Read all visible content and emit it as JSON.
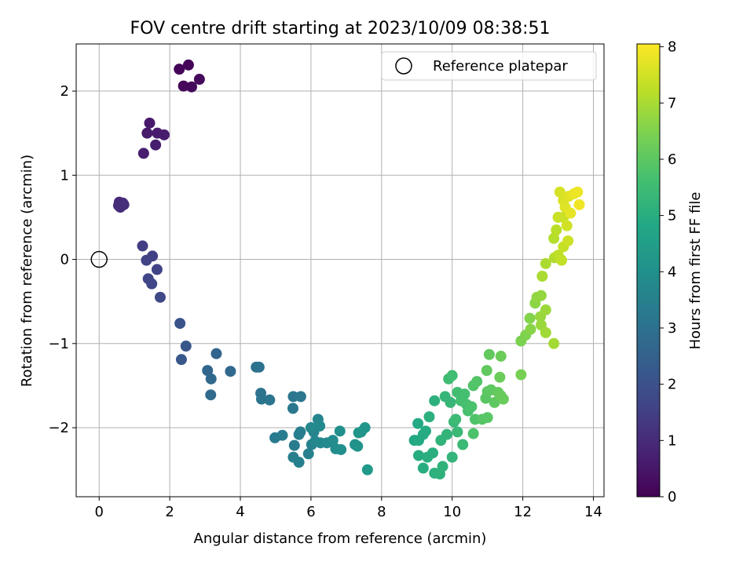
{
  "chart_data": {
    "type": "scatter",
    "title": "FOV centre drift starting at 2023/10/09 08:38:51",
    "xlabel": "Angular distance from reference (arcmin)",
    "ylabel": "Rotation from reference (arcmin)",
    "xlim": [
      -0.65,
      14.3
    ],
    "ylim": [
      -2.82,
      2.56
    ],
    "xticks": [
      0,
      2,
      4,
      6,
      8,
      10,
      12,
      14
    ],
    "yticks": [
      -2,
      -1,
      0,
      1,
      2
    ],
    "grid": true,
    "legend": {
      "position": "top-right",
      "entries": [
        {
          "label": "Reference platepar",
          "marker": "open-circle"
        }
      ]
    },
    "reference_point": {
      "x": 0,
      "y": 0
    },
    "colormap": "viridis",
    "colorbar": {
      "label": "Hours from first FF file",
      "range": [
        0,
        8.05
      ],
      "ticks": [
        0,
        1,
        2,
        3,
        4,
        5,
        6,
        7,
        8
      ]
    },
    "points": [
      {
        "x": 2.27,
        "y": 2.26,
        "c": 0.1
      },
      {
        "x": 2.53,
        "y": 2.31,
        "c": 0.12
      },
      {
        "x": 2.39,
        "y": 2.06,
        "c": 0.15
      },
      {
        "x": 2.62,
        "y": 2.05,
        "c": 0.18
      },
      {
        "x": 2.84,
        "y": 2.14,
        "c": 0.2
      },
      {
        "x": 1.43,
        "y": 1.62,
        "c": 0.55
      },
      {
        "x": 1.36,
        "y": 1.5,
        "c": 0.58
      },
      {
        "x": 1.65,
        "y": 1.5,
        "c": 0.6
      },
      {
        "x": 1.84,
        "y": 1.48,
        "c": 0.62
      },
      {
        "x": 1.6,
        "y": 1.36,
        "c": 0.64
      },
      {
        "x": 1.26,
        "y": 1.26,
        "c": 0.66
      },
      {
        "x": 0.57,
        "y": 0.68,
        "c": 0.95
      },
      {
        "x": 0.67,
        "y": 0.67,
        "c": 0.97
      },
      {
        "x": 0.55,
        "y": 0.64,
        "c": 1.0
      },
      {
        "x": 0.6,
        "y": 0.62,
        "c": 1.02
      },
      {
        "x": 0.7,
        "y": 0.65,
        "c": 1.05
      },
      {
        "x": 1.23,
        "y": 0.16,
        "c": 1.45
      },
      {
        "x": 1.51,
        "y": 0.04,
        "c": 1.5
      },
      {
        "x": 1.34,
        "y": -0.01,
        "c": 1.55
      },
      {
        "x": 1.64,
        "y": -0.12,
        "c": 1.6
      },
      {
        "x": 1.39,
        "y": -0.23,
        "c": 1.65
      },
      {
        "x": 1.49,
        "y": -0.29,
        "c": 1.7
      },
      {
        "x": 1.73,
        "y": -0.45,
        "c": 1.75
      },
      {
        "x": 2.29,
        "y": -0.76,
        "c": 2.05
      },
      {
        "x": 2.46,
        "y": -1.03,
        "c": 2.15
      },
      {
        "x": 2.33,
        "y": -1.19,
        "c": 2.2
      },
      {
        "x": 3.32,
        "y": -1.12,
        "c": 2.6
      },
      {
        "x": 3.07,
        "y": -1.32,
        "c": 2.65
      },
      {
        "x": 3.72,
        "y": -1.33,
        "c": 2.7
      },
      {
        "x": 3.17,
        "y": -1.42,
        "c": 2.75
      },
      {
        "x": 3.16,
        "y": -1.61,
        "c": 2.8
      },
      {
        "x": 4.45,
        "y": -1.28,
        "c": 3.0
      },
      {
        "x": 4.53,
        "y": -1.28,
        "c": 3.03
      },
      {
        "x": 4.58,
        "y": -1.59,
        "c": 3.06
      },
      {
        "x": 4.6,
        "y": -1.66,
        "c": 3.1
      },
      {
        "x": 4.83,
        "y": -1.67,
        "c": 3.12
      },
      {
        "x": 5.5,
        "y": -1.63,
        "c": 3.15
      },
      {
        "x": 5.71,
        "y": -1.63,
        "c": 3.18
      },
      {
        "x": 5.49,
        "y": -1.77,
        "c": 3.2
      },
      {
        "x": 4.98,
        "y": -2.12,
        "c": 3.3
      },
      {
        "x": 5.19,
        "y": -2.09,
        "c": 3.33
      },
      {
        "x": 5.53,
        "y": -2.21,
        "c": 3.36
      },
      {
        "x": 5.66,
        "y": -2.08,
        "c": 3.4
      },
      {
        "x": 5.7,
        "y": -2.05,
        "c": 3.42
      },
      {
        "x": 5.5,
        "y": -2.35,
        "c": 3.45
      },
      {
        "x": 5.66,
        "y": -2.41,
        "c": 3.48
      },
      {
        "x": 5.93,
        "y": -2.31,
        "c": 3.5
      },
      {
        "x": 6.02,
        "y": -2.2,
        "c": 3.55
      },
      {
        "x": 6.08,
        "y": -2.05,
        "c": 3.6
      },
      {
        "x": 6.2,
        "y": -1.9,
        "c": 3.65
      },
      {
        "x": 6.12,
        "y": -2.16,
        "c": 3.7
      },
      {
        "x": 6.27,
        "y": -2.18,
        "c": 3.72
      },
      {
        "x": 6.0,
        "y": -2.0,
        "c": 3.75
      },
      {
        "x": 6.25,
        "y": -1.98,
        "c": 3.78
      },
      {
        "x": 6.45,
        "y": -2.18,
        "c": 3.8
      },
      {
        "x": 6.62,
        "y": -2.15,
        "c": 3.85
      },
      {
        "x": 6.7,
        "y": -2.25,
        "c": 3.9
      },
      {
        "x": 6.85,
        "y": -2.26,
        "c": 3.95
      },
      {
        "x": 6.82,
        "y": -2.04,
        "c": 4.0
      },
      {
        "x": 7.25,
        "y": -2.2,
        "c": 4.05
      },
      {
        "x": 7.32,
        "y": -2.22,
        "c": 4.1
      },
      {
        "x": 7.35,
        "y": -2.06,
        "c": 4.15
      },
      {
        "x": 7.42,
        "y": -2.05,
        "c": 4.18
      },
      {
        "x": 7.53,
        "y": -2.0,
        "c": 4.22
      },
      {
        "x": 7.6,
        "y": -2.5,
        "c": 4.3
      },
      {
        "x": 8.93,
        "y": -2.15,
        "c": 4.8
      },
      {
        "x": 9.03,
        "y": -1.95,
        "c": 4.85
      },
      {
        "x": 9.05,
        "y": -2.15,
        "c": 4.88
      },
      {
        "x": 9.18,
        "y": -2.08,
        "c": 4.9
      },
      {
        "x": 9.25,
        "y": -2.04,
        "c": 4.93
      },
      {
        "x": 9.05,
        "y": -2.33,
        "c": 4.96
      },
      {
        "x": 9.18,
        "y": -2.48,
        "c": 5.0
      },
      {
        "x": 9.3,
        "y": -2.35,
        "c": 5.02
      },
      {
        "x": 9.45,
        "y": -2.3,
        "c": 5.05
      },
      {
        "x": 9.35,
        "y": -1.87,
        "c": 5.08
      },
      {
        "x": 9.5,
        "y": -1.68,
        "c": 5.1
      },
      {
        "x": 9.5,
        "y": -2.54,
        "c": 5.12
      },
      {
        "x": 9.65,
        "y": -2.55,
        "c": 5.15
      },
      {
        "x": 9.73,
        "y": -2.46,
        "c": 5.18
      },
      {
        "x": 9.68,
        "y": -2.15,
        "c": 5.2
      },
      {
        "x": 9.85,
        "y": -2.08,
        "c": 5.23
      },
      {
        "x": 10.0,
        "y": -2.35,
        "c": 5.26
      },
      {
        "x": 9.8,
        "y": -1.63,
        "c": 5.3
      },
      {
        "x": 9.95,
        "y": -1.7,
        "c": 5.33
      },
      {
        "x": 10.05,
        "y": -1.93,
        "c": 5.36
      },
      {
        "x": 10.15,
        "y": -2.05,
        "c": 5.4
      },
      {
        "x": 10.3,
        "y": -2.2,
        "c": 5.43
      },
      {
        "x": 10.1,
        "y": -1.9,
        "c": 5.46
      },
      {
        "x": 9.9,
        "y": -1.42,
        "c": 5.5
      },
      {
        "x": 10.0,
        "y": -1.38,
        "c": 5.53
      },
      {
        "x": 10.15,
        "y": -1.58,
        "c": 5.56
      },
      {
        "x": 10.25,
        "y": -1.68,
        "c": 5.6
      },
      {
        "x": 10.35,
        "y": -1.6,
        "c": 5.63
      },
      {
        "x": 10.4,
        "y": -1.72,
        "c": 5.66
      },
      {
        "x": 10.45,
        "y": -1.8,
        "c": 5.7
      },
      {
        "x": 10.55,
        "y": -1.75,
        "c": 5.73
      },
      {
        "x": 10.6,
        "y": -2.07,
        "c": 5.76
      },
      {
        "x": 10.65,
        "y": -1.9,
        "c": 5.8
      },
      {
        "x": 10.6,
        "y": -1.5,
        "c": 5.83
      },
      {
        "x": 10.7,
        "y": -1.45,
        "c": 5.86
      },
      {
        "x": 10.85,
        "y": -1.9,
        "c": 5.9
      },
      {
        "x": 11.0,
        "y": -1.88,
        "c": 5.93
      },
      {
        "x": 10.95,
        "y": -1.65,
        "c": 5.96
      },
      {
        "x": 11.0,
        "y": -1.57,
        "c": 6.0
      },
      {
        "x": 11.1,
        "y": -1.55,
        "c": 6.02
      },
      {
        "x": 11.2,
        "y": -1.7,
        "c": 6.05
      },
      {
        "x": 10.98,
        "y": -1.32,
        "c": 6.08
      },
      {
        "x": 11.05,
        "y": -1.13,
        "c": 6.1
      },
      {
        "x": 11.3,
        "y": -1.58,
        "c": 6.12
      },
      {
        "x": 11.38,
        "y": -1.62,
        "c": 6.15
      },
      {
        "x": 11.45,
        "y": -1.66,
        "c": 6.18
      },
      {
        "x": 11.35,
        "y": -1.4,
        "c": 6.2
      },
      {
        "x": 11.38,
        "y": -1.15,
        "c": 6.22
      },
      {
        "x": 11.95,
        "y": -1.37,
        "c": 6.4
      },
      {
        "x": 11.95,
        "y": -0.97,
        "c": 6.45
      },
      {
        "x": 12.08,
        "y": -0.9,
        "c": 6.5
      },
      {
        "x": 12.2,
        "y": -0.7,
        "c": 6.55
      },
      {
        "x": 12.22,
        "y": -0.83,
        "c": 6.6
      },
      {
        "x": 12.35,
        "y": -0.52,
        "c": 6.65
      },
      {
        "x": 12.4,
        "y": -0.45,
        "c": 6.7
      },
      {
        "x": 12.52,
        "y": -0.43,
        "c": 6.75
      },
      {
        "x": 12.5,
        "y": -0.68,
        "c": 6.8
      },
      {
        "x": 12.52,
        "y": -0.78,
        "c": 6.82
      },
      {
        "x": 12.65,
        "y": -0.6,
        "c": 6.85
      },
      {
        "x": 12.65,
        "y": -0.87,
        "c": 6.9
      },
      {
        "x": 12.88,
        "y": -1.0,
        "c": 6.95
      },
      {
        "x": 12.55,
        "y": -0.2,
        "c": 7.0
      },
      {
        "x": 12.65,
        "y": -0.05,
        "c": 7.03
      },
      {
        "x": 12.9,
        "y": 0.02,
        "c": 7.1
      },
      {
        "x": 12.88,
        "y": 0.25,
        "c": 7.15
      },
      {
        "x": 12.95,
        "y": 0.35,
        "c": 7.2
      },
      {
        "x": 13.0,
        "y": 0.05,
        "c": 7.25
      },
      {
        "x": 13.1,
        "y": -0.01,
        "c": 7.3
      },
      {
        "x": 13.15,
        "y": 0.15,
        "c": 7.35
      },
      {
        "x": 13.15,
        "y": 0.5,
        "c": 7.4
      },
      {
        "x": 13.28,
        "y": 0.22,
        "c": 7.45
      },
      {
        "x": 13.25,
        "y": 0.4,
        "c": 7.5
      },
      {
        "x": 13.05,
        "y": 0.8,
        "c": 7.55
      },
      {
        "x": 13.15,
        "y": 0.7,
        "c": 7.6
      },
      {
        "x": 13.2,
        "y": 0.62,
        "c": 7.65
      },
      {
        "x": 13.3,
        "y": 0.75,
        "c": 7.7
      },
      {
        "x": 13.35,
        "y": 0.55,
        "c": 7.75
      },
      {
        "x": 13.45,
        "y": 0.78,
        "c": 7.8
      },
      {
        "x": 13.55,
        "y": 0.8,
        "c": 7.85
      },
      {
        "x": 13.6,
        "y": 0.65,
        "c": 7.9
      },
      {
        "x": 13.0,
        "y": 0.5,
        "c": 7.4
      }
    ]
  }
}
